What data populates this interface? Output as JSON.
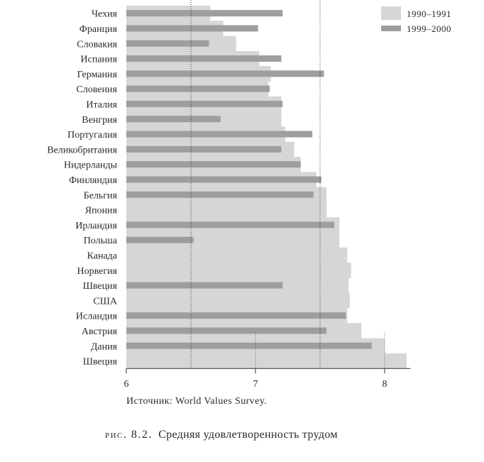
{
  "chart_data": {
    "type": "bar",
    "orientation": "horizontal",
    "categories": [
      "Чехия",
      "Франция",
      "Словакия",
      "Испания",
      "Германия",
      "Словения",
      "Италия",
      "Венгрия",
      "Португалия",
      "Великобритания",
      "Нидерланды",
      "Финляндия",
      "Бельгия",
      "Япония",
      "Ирландия",
      "Польша",
      "Канада",
      "Норвегия",
      "Швеция",
      "США",
      "Исландия",
      "Австрия",
      "Дания",
      "Швеция"
    ],
    "series": [
      {
        "name": "1990–1991",
        "color": "#d6d6d6",
        "values": [
          6.65,
          6.75,
          6.85,
          7.03,
          7.12,
          7.1,
          7.2,
          7.2,
          7.23,
          7.3,
          7.35,
          7.47,
          7.55,
          7.55,
          7.65,
          7.65,
          7.71,
          7.74,
          7.72,
          7.73,
          7.71,
          7.82,
          8.0,
          8.17
        ]
      },
      {
        "name": "1999–2000",
        "color": "#9e9e9e",
        "values": [
          7.21,
          7.02,
          6.64,
          7.2,
          7.53,
          7.11,
          7.21,
          6.73,
          7.44,
          7.2,
          7.35,
          7.51,
          7.45,
          null,
          7.61,
          6.52,
          null,
          null,
          7.21,
          null,
          7.7,
          7.55,
          7.9,
          null
        ]
      }
    ],
    "xlim": [
      6,
      8.2
    ],
    "xticks": [
      "6",
      "7",
      "8"
    ],
    "xtick_values": [
      6,
      7,
      8
    ],
    "reference_lines": [
      6.5,
      7.5
    ],
    "legend_position": "top-right",
    "source_text": "Источник: World Values Survey.",
    "caption_prefix": "рис. 8.2.",
    "caption_text": "Средняя удовлетворенность трудом"
  }
}
